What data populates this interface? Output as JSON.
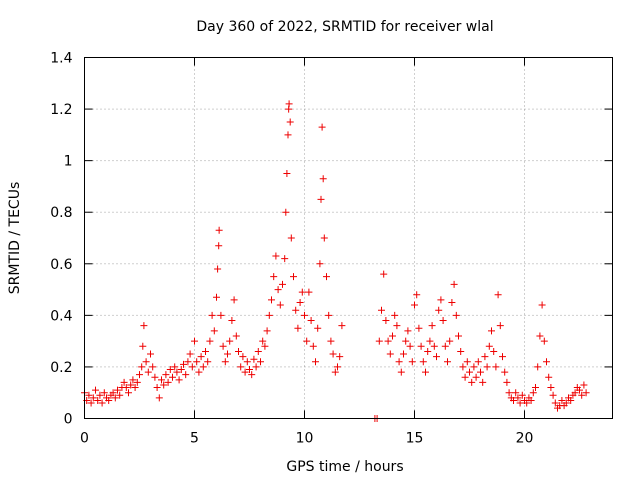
{
  "chart_data": {
    "type": "scatter",
    "title": "Day 360 of 2022, SRMTID for receiver wlal",
    "xlabel": "GPS time / hours",
    "ylabel": "SRMTID / TECUs",
    "xlim": [
      0,
      24
    ],
    "ylim": [
      0,
      1.4
    ],
    "xticks": [
      0,
      5,
      10,
      15,
      20
    ],
    "yticks": [
      0,
      0.2,
      0.4,
      0.6,
      0.8,
      1,
      1.2,
      1.4
    ],
    "xtick_labels": [
      "0",
      "5",
      "10",
      "15",
      "20"
    ],
    "ytick_labels": [
      "0",
      "0.2",
      "0.4",
      "0.6",
      "0.8",
      "1",
      "1.2",
      "1.4"
    ],
    "grid": true,
    "marker": "+",
    "color": "#ee0000",
    "series": [
      {
        "name": "SRMTID",
        "points": [
          [
            0.0,
            0.1
          ],
          [
            0.1,
            0.07
          ],
          [
            0.2,
            0.09
          ],
          [
            0.3,
            0.06
          ],
          [
            0.4,
            0.08
          ],
          [
            0.5,
            0.11
          ],
          [
            0.6,
            0.07
          ],
          [
            0.7,
            0.09
          ],
          [
            0.8,
            0.06
          ],
          [
            0.9,
            0.1
          ],
          [
            1.0,
            0.08
          ],
          [
            1.1,
            0.07
          ],
          [
            1.2,
            0.09
          ],
          [
            1.3,
            0.1
          ],
          [
            1.4,
            0.08
          ],
          [
            1.5,
            0.11
          ],
          [
            1.6,
            0.09
          ],
          [
            1.7,
            0.12
          ],
          [
            1.8,
            0.14
          ],
          [
            1.9,
            0.12
          ],
          [
            2.0,
            0.1
          ],
          [
            2.1,
            0.13
          ],
          [
            2.2,
            0.15
          ],
          [
            2.3,
            0.12
          ],
          [
            2.4,
            0.14
          ],
          [
            2.5,
            0.17
          ],
          [
            2.6,
            0.2
          ],
          [
            2.65,
            0.28
          ],
          [
            2.7,
            0.36
          ],
          [
            2.8,
            0.22
          ],
          [
            2.9,
            0.18
          ],
          [
            3.0,
            0.25
          ],
          [
            3.1,
            0.2
          ],
          [
            3.2,
            0.16
          ],
          [
            3.3,
            0.12
          ],
          [
            3.4,
            0.08
          ],
          [
            3.5,
            0.15
          ],
          [
            3.6,
            0.13
          ],
          [
            3.7,
            0.17
          ],
          [
            3.8,
            0.14
          ],
          [
            3.9,
            0.19
          ],
          [
            4.0,
            0.16
          ],
          [
            4.1,
            0.2
          ],
          [
            4.2,
            0.18
          ],
          [
            4.3,
            0.15
          ],
          [
            4.4,
            0.19
          ],
          [
            4.5,
            0.21
          ],
          [
            4.6,
            0.17
          ],
          [
            4.7,
            0.22
          ],
          [
            4.8,
            0.25
          ],
          [
            4.9,
            0.2
          ],
          [
            5.0,
            0.3
          ],
          [
            5.1,
            0.22
          ],
          [
            5.2,
            0.18
          ],
          [
            5.3,
            0.24
          ],
          [
            5.4,
            0.2
          ],
          [
            5.5,
            0.26
          ],
          [
            5.6,
            0.22
          ],
          [
            5.7,
            0.3
          ],
          [
            5.8,
            0.4
          ],
          [
            5.9,
            0.34
          ],
          [
            6.0,
            0.47
          ],
          [
            6.05,
            0.58
          ],
          [
            6.1,
            0.67
          ],
          [
            6.12,
            0.73
          ],
          [
            6.2,
            0.4
          ],
          [
            6.3,
            0.28
          ],
          [
            6.4,
            0.22
          ],
          [
            6.5,
            0.25
          ],
          [
            6.6,
            0.3
          ],
          [
            6.7,
            0.38
          ],
          [
            6.8,
            0.46
          ],
          [
            6.9,
            0.32
          ],
          [
            7.0,
            0.26
          ],
          [
            7.1,
            0.2
          ],
          [
            7.2,
            0.24
          ],
          [
            7.3,
            0.18
          ],
          [
            7.4,
            0.22
          ],
          [
            7.5,
            0.19
          ],
          [
            7.6,
            0.17
          ],
          [
            7.7,
            0.23
          ],
          [
            7.8,
            0.2
          ],
          [
            7.9,
            0.26
          ],
          [
            8.0,
            0.22
          ],
          [
            8.1,
            0.3
          ],
          [
            8.2,
            0.28
          ],
          [
            8.3,
            0.34
          ],
          [
            8.4,
            0.4
          ],
          [
            8.5,
            0.46
          ],
          [
            8.6,
            0.55
          ],
          [
            8.7,
            0.63
          ],
          [
            8.8,
            0.5
          ],
          [
            8.9,
            0.44
          ],
          [
            9.0,
            0.52
          ],
          [
            9.1,
            0.62
          ],
          [
            9.15,
            0.8
          ],
          [
            9.2,
            0.95
          ],
          [
            9.25,
            1.1
          ],
          [
            9.28,
            1.2
          ],
          [
            9.3,
            1.22
          ],
          [
            9.35,
            1.15
          ],
          [
            9.4,
            0.7
          ],
          [
            9.5,
            0.55
          ],
          [
            9.6,
            0.42
          ],
          [
            9.7,
            0.35
          ],
          [
            9.8,
            0.45
          ],
          [
            9.9,
            0.49
          ],
          [
            10.0,
            0.4
          ],
          [
            10.1,
            0.3
          ],
          [
            10.2,
            0.49
          ],
          [
            10.3,
            0.38
          ],
          [
            10.4,
            0.28
          ],
          [
            10.5,
            0.22
          ],
          [
            10.6,
            0.35
          ],
          [
            10.7,
            0.6
          ],
          [
            10.75,
            0.85
          ],
          [
            10.8,
            1.13
          ],
          [
            10.85,
            0.93
          ],
          [
            10.9,
            0.7
          ],
          [
            11.0,
            0.55
          ],
          [
            11.1,
            0.4
          ],
          [
            11.2,
            0.3
          ],
          [
            11.3,
            0.25
          ],
          [
            11.4,
            0.18
          ],
          [
            11.5,
            0.2
          ],
          [
            11.6,
            0.24
          ],
          [
            11.7,
            0.36
          ],
          [
            13.2,
            0.0
          ],
          [
            13.3,
            0.0
          ],
          [
            13.4,
            0.3
          ],
          [
            13.5,
            0.42
          ],
          [
            13.6,
            0.56
          ],
          [
            13.7,
            0.38
          ],
          [
            13.8,
            0.3
          ],
          [
            13.9,
            0.25
          ],
          [
            14.0,
            0.32
          ],
          [
            14.1,
            0.4
          ],
          [
            14.2,
            0.36
          ],
          [
            14.3,
            0.22
          ],
          [
            14.4,
            0.18
          ],
          [
            14.5,
            0.25
          ],
          [
            14.6,
            0.3
          ],
          [
            14.7,
            0.34
          ],
          [
            14.8,
            0.28
          ],
          [
            14.9,
            0.22
          ],
          [
            15.0,
            0.44
          ],
          [
            15.1,
            0.48
          ],
          [
            15.2,
            0.35
          ],
          [
            15.3,
            0.28
          ],
          [
            15.4,
            0.22
          ],
          [
            15.5,
            0.18
          ],
          [
            15.6,
            0.26
          ],
          [
            15.7,
            0.3
          ],
          [
            15.8,
            0.36
          ],
          [
            15.9,
            0.28
          ],
          [
            16.0,
            0.24
          ],
          [
            16.1,
            0.42
          ],
          [
            16.2,
            0.46
          ],
          [
            16.3,
            0.38
          ],
          [
            16.4,
            0.28
          ],
          [
            16.5,
            0.22
          ],
          [
            16.6,
            0.3
          ],
          [
            16.7,
            0.45
          ],
          [
            16.8,
            0.52
          ],
          [
            16.9,
            0.4
          ],
          [
            17.0,
            0.32
          ],
          [
            17.1,
            0.26
          ],
          [
            17.2,
            0.2
          ],
          [
            17.3,
            0.16
          ],
          [
            17.4,
            0.22
          ],
          [
            17.5,
            0.18
          ],
          [
            17.6,
            0.14
          ],
          [
            17.7,
            0.2
          ],
          [
            17.8,
            0.16
          ],
          [
            17.9,
            0.22
          ],
          [
            18.0,
            0.18
          ],
          [
            18.1,
            0.14
          ],
          [
            18.2,
            0.24
          ],
          [
            18.3,
            0.2
          ],
          [
            18.4,
            0.28
          ],
          [
            18.5,
            0.34
          ],
          [
            18.6,
            0.26
          ],
          [
            18.7,
            0.2
          ],
          [
            18.8,
            0.48
          ],
          [
            18.9,
            0.36
          ],
          [
            19.0,
            0.24
          ],
          [
            19.1,
            0.18
          ],
          [
            19.2,
            0.14
          ],
          [
            19.3,
            0.1
          ],
          [
            19.4,
            0.08
          ],
          [
            19.5,
            0.07
          ],
          [
            19.6,
            0.1
          ],
          [
            19.7,
            0.08
          ],
          [
            19.8,
            0.06
          ],
          [
            19.9,
            0.09
          ],
          [
            20.0,
            0.07
          ],
          [
            20.1,
            0.06
          ],
          [
            20.2,
            0.08
          ],
          [
            20.3,
            0.07
          ],
          [
            20.4,
            0.1
          ],
          [
            20.5,
            0.12
          ],
          [
            20.6,
            0.2
          ],
          [
            20.7,
            0.32
          ],
          [
            20.8,
            0.44
          ],
          [
            20.9,
            0.3
          ],
          [
            21.0,
            0.22
          ],
          [
            21.1,
            0.16
          ],
          [
            21.2,
            0.12
          ],
          [
            21.3,
            0.09
          ],
          [
            21.4,
            0.06
          ],
          [
            21.5,
            0.04
          ],
          [
            21.6,
            0.05
          ],
          [
            21.7,
            0.07
          ],
          [
            21.8,
            0.05
          ],
          [
            21.9,
            0.06
          ],
          [
            22.0,
            0.08
          ],
          [
            22.1,
            0.07
          ],
          [
            22.2,
            0.09
          ],
          [
            22.3,
            0.1
          ],
          [
            22.4,
            0.12
          ],
          [
            22.5,
            0.11
          ],
          [
            22.6,
            0.09
          ],
          [
            22.7,
            0.13
          ],
          [
            22.8,
            0.1
          ]
        ]
      }
    ]
  }
}
